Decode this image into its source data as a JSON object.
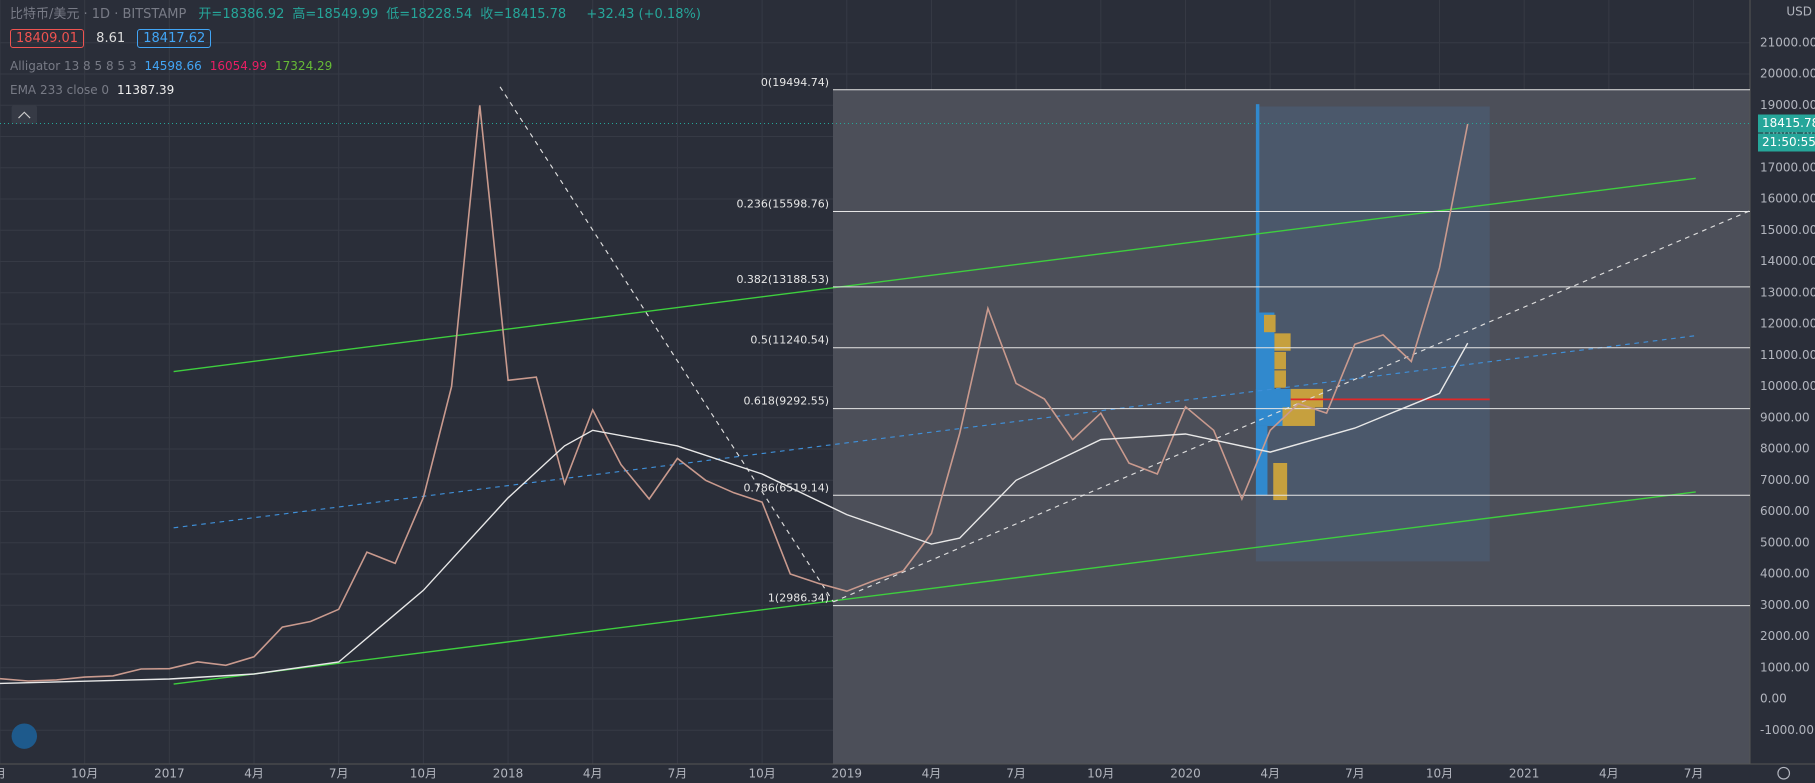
{
  "chart_data": {
    "type": "line",
    "currency": "USD",
    "header": {
      "symbol": "比特币/美元 · 1D · BITSTAMP",
      "ohlc": [
        "开=18386.92",
        "高=18549.99",
        "低=18228.54",
        "收=18415.78"
      ],
      "change": "+32.43 (+0.18%)",
      "bid": "18409.01",
      "spread": "8.61",
      "ask": "18417.62"
    },
    "alligator": {
      "label": "Alligator 13 8 5 8 5 3",
      "values": [
        "14598.66",
        "16054.99",
        "17324.29"
      ]
    },
    "ema": {
      "label": "EMA 233 close 0",
      "value": "11387.39"
    },
    "last_price": 18415.78,
    "countdown": "21:50:55",
    "xlim": [
      "2016-07",
      "2021-09"
    ],
    "xticks": [
      {
        "value": "2016-07",
        "label": "月"
      },
      {
        "value": "2016-10",
        "label": "10月"
      },
      {
        "value": "2017-01",
        "label": "2017"
      },
      {
        "value": "2017-04",
        "label": "4月"
      },
      {
        "value": "2017-07",
        "label": "7月"
      },
      {
        "value": "2017-10",
        "label": "10月"
      },
      {
        "value": "2018-01",
        "label": "2018"
      },
      {
        "value": "2018-04",
        "label": "4月"
      },
      {
        "value": "2018-07",
        "label": "7月"
      },
      {
        "value": "2018-10",
        "label": "10月"
      },
      {
        "value": "2019-01",
        "label": "2019"
      },
      {
        "value": "2019-04",
        "label": "4月"
      },
      {
        "value": "2019-07",
        "label": "7月"
      },
      {
        "value": "2019-10",
        "label": "10月"
      },
      {
        "value": "2020-01",
        "label": "2020"
      },
      {
        "value": "2020-04",
        "label": "4月"
      },
      {
        "value": "2020-07",
        "label": "7月"
      },
      {
        "value": "2020-10",
        "label": "10月"
      },
      {
        "value": "2021-01",
        "label": "2021"
      },
      {
        "value": "2021-04",
        "label": "4月"
      },
      {
        "value": "2021-07",
        "label": "7月"
      }
    ],
    "ylim": [
      -2080,
      22368
    ],
    "yticks": [
      {
        "value": -1000,
        "label": "-1000.00"
      },
      {
        "value": 0,
        "label": "0.00"
      },
      {
        "value": 1000,
        "label": "1000.00"
      },
      {
        "value": 2000,
        "label": "2000.00"
      },
      {
        "value": 3000,
        "label": "3000.00"
      },
      {
        "value": 4000,
        "label": "4000.00"
      },
      {
        "value": 5000,
        "label": "5000.00"
      },
      {
        "value": 6000,
        "label": "6000.00"
      },
      {
        "value": 7000,
        "label": "7000.00"
      },
      {
        "value": 8000,
        "label": "8000.00"
      },
      {
        "value": 9000,
        "label": "9000.00"
      },
      {
        "value": 10000,
        "label": "10000.00"
      },
      {
        "value": 11000,
        "label": "11000.00"
      },
      {
        "value": 12000,
        "label": "12000.00"
      },
      {
        "value": 13000,
        "label": "13000.00"
      },
      {
        "value": 14000,
        "label": "14000.00"
      },
      {
        "value": 15000,
        "label": "15000.00"
      },
      {
        "value": 16000,
        "label": "16000.00"
      },
      {
        "value": 17000,
        "label": "17000.00"
      },
      {
        "value": 18000,
        "label": "18000.00"
      },
      {
        "value": 19000,
        "label": "19000.00"
      },
      {
        "value": 20000,
        "label": "20000.00"
      },
      {
        "value": 21000,
        "label": "21000.00"
      }
    ],
    "grid": true,
    "fib_levels": [
      {
        "label": "0(19494.74)",
        "value": 19494.74
      },
      {
        "label": "0.236(15598.76)",
        "value": 15598.76
      },
      {
        "label": "0.382(13188.53)",
        "value": 13188.53
      },
      {
        "label": "0.5(11240.54)",
        "value": 11240.54
      },
      {
        "label": "0.618(9292.55)",
        "value": 9292.55
      },
      {
        "label": "0.786(6519.14)",
        "value": 6519.14
      },
      {
        "label": "1(2986.34)",
        "value": 2986.34
      }
    ],
    "series": [
      {
        "color": "#c99a8e",
        "x": [
          "2016-07",
          "2016-08",
          "2016-09",
          "2016-10",
          "2016-11",
          "2016-12",
          "2017-01",
          "2017-02",
          "2017-03",
          "2017-04",
          "2017-05",
          "2017-06",
          "2017-07",
          "2017-08",
          "2017-09",
          "2017-10",
          "2017-11",
          "2017-12",
          "2018-01",
          "2018-02",
          "2018-03",
          "2018-04",
          "2018-05",
          "2018-06",
          "2018-07",
          "2018-08",
          "2018-09",
          "2018-10",
          "2018-11",
          "2018-12",
          "2019-01",
          "2019-02",
          "2019-03",
          "2019-04",
          "2019-05",
          "2019-06",
          "2019-07",
          "2019-08",
          "2019-09",
          "2019-10",
          "2019-11",
          "2019-12",
          "2020-01",
          "2020-02",
          "2020-03",
          "2020-04",
          "2020-05",
          "2020-06",
          "2020-07",
          "2020-08",
          "2020-09",
          "2020-10",
          "2020-11"
        ],
        "values": [
          650,
          575,
          610,
          700,
          740,
          960,
          970,
          1190,
          1080,
          1350,
          2300,
          2480,
          2870,
          4700,
          4340,
          6450,
          10000,
          19000,
          10200,
          10300,
          6900,
          9250,
          7500,
          6400,
          7700,
          7000,
          6600,
          6300,
          4000,
          3700,
          3450,
          3800,
          4100,
          5300,
          8500,
          12500,
          10100,
          9600,
          8300,
          9150,
          7550,
          7200,
          9350,
          8600,
          6400,
          8600,
          9450,
          9150,
          11350,
          11650,
          10800,
          13800,
          18400
        ]
      },
      {
        "color": "#e8e8e8",
        "x": [
          "2016-07",
          "2017-01",
          "2017-04",
          "2017-07",
          "2017-10",
          "2018-01",
          "2018-03",
          "2018-04",
          "2018-07",
          "2018-10",
          "2019-01",
          "2019-04",
          "2019-05",
          "2019-07",
          "2019-10",
          "2020-01",
          "2020-04",
          "2020-07",
          "2020-10",
          "2020-11"
        ],
        "values": [
          500,
          640,
          800,
          1185,
          3480,
          6440,
          8100,
          8600,
          8100,
          7200,
          5900,
          4960,
          5150,
          7000,
          8300,
          8480,
          7900,
          8670,
          9780,
          11387.39
        ]
      }
    ]
  }
}
